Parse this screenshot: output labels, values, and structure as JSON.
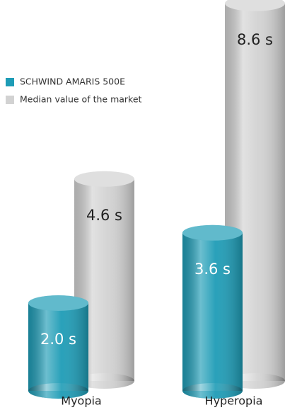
{
  "chart_data": {
    "type": "bar",
    "categories": [
      "Myopia",
      "Hyperopia"
    ],
    "series": [
      {
        "name": "SCHWIND AMARIS 500E",
        "color": "#1e9cb6",
        "values": [
          2.0,
          3.6
        ],
        "value_labels": [
          "2.0 s",
          "3.6 s"
        ]
      },
      {
        "name": "Median value of the market",
        "color": "#d2d2d2",
        "values": [
          4.6,
          8.6
        ],
        "value_labels": [
          "4.6 s",
          "8.6 s"
        ]
      }
    ]
  }
}
